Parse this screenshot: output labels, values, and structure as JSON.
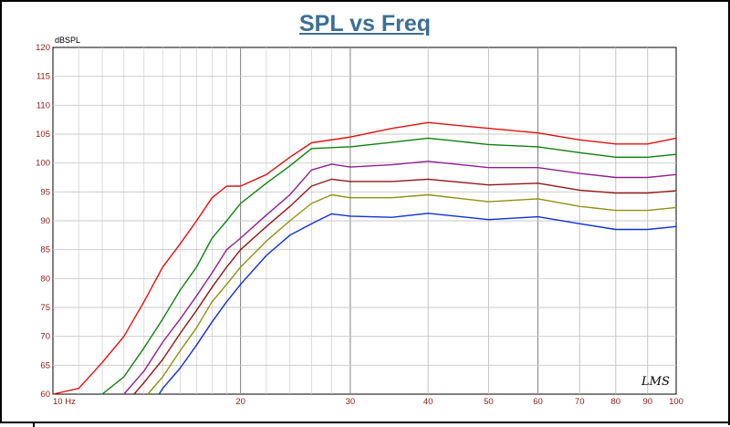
{
  "chart_data": {
    "type": "line",
    "title": "SPL vs Freq",
    "ylabel": "dBSPL",
    "xlabel": "",
    "xscale": "log",
    "xlim": [
      10,
      100
    ],
    "ylim": [
      60,
      120
    ],
    "grid": true,
    "brand": "LMS",
    "x_ticks": [
      {
        "value": 10,
        "label": "10  Hz"
      },
      {
        "value": 20,
        "label": "20"
      },
      {
        "value": 30,
        "label": "30"
      },
      {
        "value": 40,
        "label": "40"
      },
      {
        "value": 50,
        "label": "50"
      },
      {
        "value": 60,
        "label": "60"
      },
      {
        "value": 70,
        "label": "70"
      },
      {
        "value": 80,
        "label": "80"
      },
      {
        "value": 90,
        "label": "90"
      },
      {
        "value": 100,
        "label": "100"
      }
    ],
    "y_ticks": [
      60,
      65,
      70,
      75,
      80,
      85,
      90,
      95,
      100,
      105,
      110,
      115,
      120
    ],
    "series": [
      {
        "color": "#e01010",
        "points": [
          [
            10,
            60
          ],
          [
            11,
            61
          ],
          [
            12,
            65.5
          ],
          [
            13,
            70
          ],
          [
            14,
            76
          ],
          [
            15,
            82
          ],
          [
            16,
            86
          ],
          [
            17,
            90
          ],
          [
            18,
            94
          ],
          [
            19,
            96
          ],
          [
            20,
            96
          ],
          [
            22,
            98
          ],
          [
            24,
            101
          ],
          [
            26,
            103.5
          ],
          [
            30,
            104.5
          ],
          [
            35,
            106
          ],
          [
            40,
            107
          ],
          [
            50,
            106
          ],
          [
            60,
            105.2
          ],
          [
            70,
            104
          ],
          [
            80,
            103.3
          ],
          [
            90,
            103.3
          ],
          [
            100,
            104.3
          ]
        ]
      },
      {
        "color": "#108010",
        "points": [
          [
            12,
            60
          ],
          [
            13,
            63
          ],
          [
            14,
            68
          ],
          [
            15,
            73
          ],
          [
            16,
            78
          ],
          [
            17,
            82
          ],
          [
            18,
            87
          ],
          [
            19,
            90
          ],
          [
            20,
            93
          ],
          [
            22,
            96.5
          ],
          [
            24,
            99.5
          ],
          [
            26,
            102.5
          ],
          [
            30,
            102.8
          ],
          [
            35,
            103.6
          ],
          [
            40,
            104.3
          ],
          [
            50,
            103.2
          ],
          [
            60,
            102.8
          ],
          [
            70,
            101.8
          ],
          [
            80,
            101
          ],
          [
            90,
            101
          ],
          [
            100,
            101.5
          ]
        ]
      },
      {
        "color": "#902090",
        "points": [
          [
            13,
            60
          ],
          [
            14,
            64
          ],
          [
            15,
            69
          ],
          [
            16,
            73
          ],
          [
            17,
            77
          ],
          [
            18,
            81
          ],
          [
            19,
            85
          ],
          [
            20,
            87
          ],
          [
            22,
            91
          ],
          [
            24,
            94.5
          ],
          [
            26,
            98.8
          ],
          [
            28,
            99.8
          ],
          [
            30,
            99.3
          ],
          [
            35,
            99.7
          ],
          [
            40,
            100.3
          ],
          [
            50,
            99.2
          ],
          [
            60,
            99.2
          ],
          [
            70,
            98.2
          ],
          [
            80,
            97.5
          ],
          [
            90,
            97.5
          ],
          [
            100,
            98
          ]
        ]
      },
      {
        "color": "#901818",
        "points": [
          [
            13.5,
            60
          ],
          [
            14,
            62
          ],
          [
            15,
            66
          ],
          [
            16,
            70.5
          ],
          [
            17,
            74.5
          ],
          [
            18,
            78.5
          ],
          [
            19,
            82
          ],
          [
            20,
            85
          ],
          [
            22,
            89
          ],
          [
            24,
            92.5
          ],
          [
            26,
            96
          ],
          [
            28,
            97.2
          ],
          [
            30,
            96.8
          ],
          [
            35,
            96.8
          ],
          [
            40,
            97.2
          ],
          [
            50,
            96.2
          ],
          [
            60,
            96.5
          ],
          [
            70,
            95.3
          ],
          [
            80,
            94.8
          ],
          [
            90,
            94.8
          ],
          [
            100,
            95.2
          ]
        ]
      },
      {
        "color": "#909010",
        "points": [
          [
            14.2,
            60
          ],
          [
            15,
            63
          ],
          [
            16,
            67.5
          ],
          [
            17,
            71.5
          ],
          [
            18,
            76
          ],
          [
            19,
            79
          ],
          [
            20,
            82
          ],
          [
            22,
            86.5
          ],
          [
            24,
            90
          ],
          [
            26,
            93
          ],
          [
            28,
            94.5
          ],
          [
            30,
            94
          ],
          [
            35,
            94
          ],
          [
            40,
            94.5
          ],
          [
            50,
            93.3
          ],
          [
            60,
            93.8
          ],
          [
            70,
            92.5
          ],
          [
            80,
            91.8
          ],
          [
            90,
            91.8
          ],
          [
            100,
            92.3
          ]
        ]
      },
      {
        "color": "#1030d0",
        "points": [
          [
            14.8,
            60
          ],
          [
            15,
            61
          ],
          [
            16,
            64.5
          ],
          [
            17,
            68.5
          ],
          [
            18,
            72.5
          ],
          [
            19,
            76
          ],
          [
            20,
            79
          ],
          [
            22,
            84
          ],
          [
            24,
            87.5
          ],
          [
            26,
            89.5
          ],
          [
            28,
            91.2
          ],
          [
            30,
            90.8
          ],
          [
            35,
            90.6
          ],
          [
            40,
            91.3
          ],
          [
            50,
            90.2
          ],
          [
            60,
            90.7
          ],
          [
            70,
            89.5
          ],
          [
            80,
            88.5
          ],
          [
            90,
            88.5
          ],
          [
            100,
            89
          ]
        ]
      }
    ]
  }
}
